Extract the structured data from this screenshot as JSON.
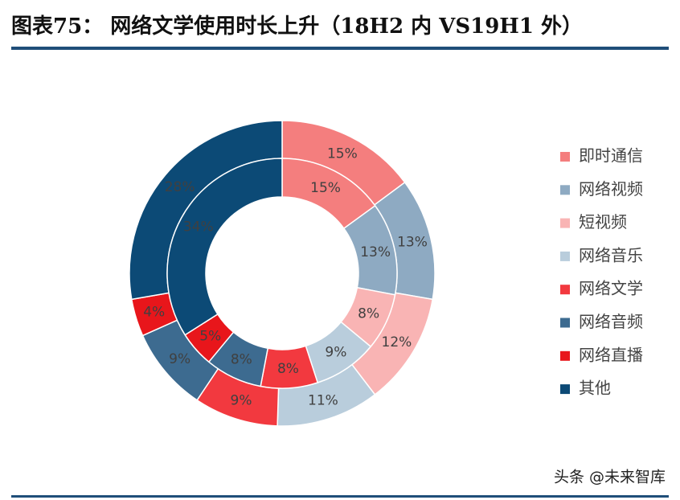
{
  "chart_data": {
    "type": "donut",
    "title": "图表75：  网络文学使用时长上升（18H2 内 VS19H1 外）",
    "categories": [
      "即时通信",
      "网络视频",
      "短视频",
      "网络音乐",
      "网络文学",
      "网络音频",
      "网络直播",
      "其他"
    ],
    "colors": [
      "#f47e7e",
      "#8eaac2",
      "#f9b4b4",
      "#b9cddc",
      "#f2393f",
      "#3d6b90",
      "#e8161b",
      "#0c4a76"
    ],
    "series": [
      {
        "values": [
          15,
          13,
          12,
          11,
          9,
          9,
          4,
          28
        ],
        "value_labels": [
          "15%",
          "13%",
          "12%",
          "11%",
          "9%",
          "9%",
          "4%",
          "28%"
        ]
      },
      {
        "values": [
          15,
          13,
          8,
          9,
          8,
          8,
          5,
          34
        ],
        "value_labels": [
          "15%",
          "13%",
          "8%",
          "9%",
          "8%",
          "8%",
          "5%",
          "34%"
        ]
      }
    ],
    "legend": "right",
    "watermark": "头条 @未来智库"
  }
}
